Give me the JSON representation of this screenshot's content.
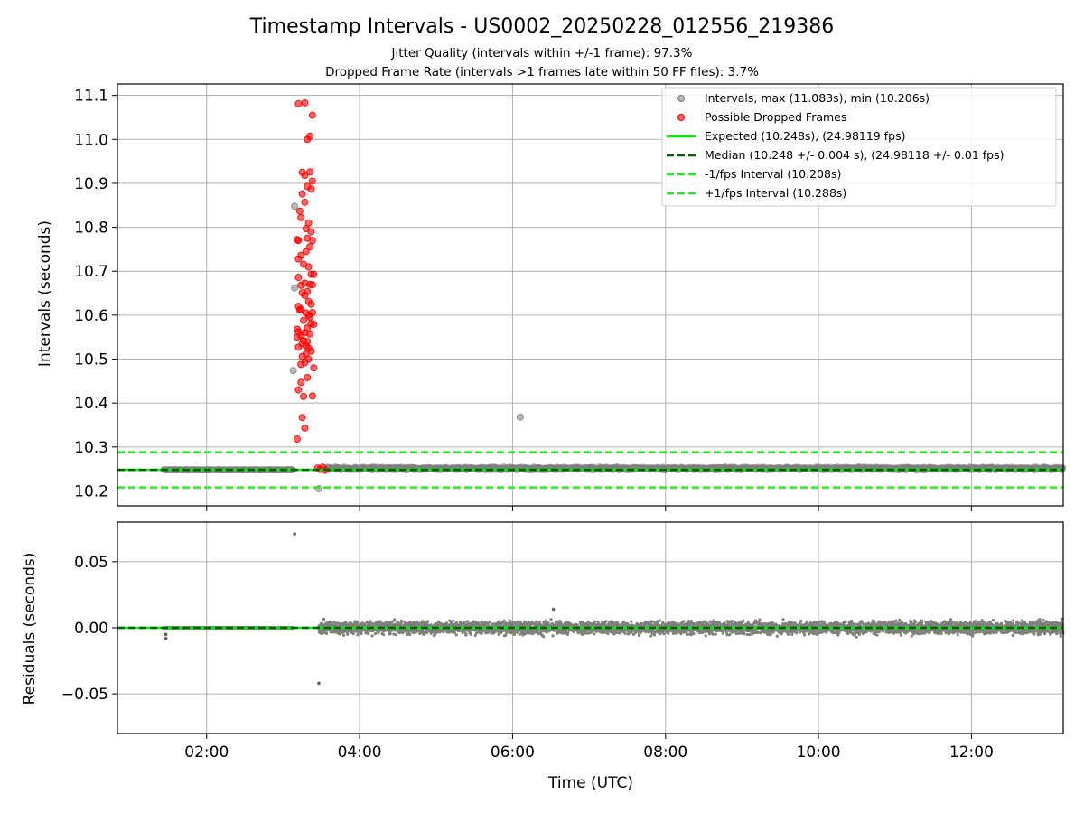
{
  "title": "Timestamp Intervals - US0002_20250228_012556_219386",
  "subtitles": [
    "Jitter Quality (intervals within +/-1 frame): 97.3%",
    "Dropped Frame Rate (intervals >1 frames late within 50 FF files): 3.7%"
  ],
  "colors": {
    "intervals": "#808080",
    "dropped": "#ff0000",
    "expected": "#00ee00",
    "median": "#006400",
    "bounds": "#22ee22",
    "grid": "#b0b0b0"
  },
  "chart_data": [
    {
      "type": "scatter",
      "name": "intervals",
      "ylabel": "Intervals (seconds)",
      "xlabel": "",
      "xlim": [
        "00:50",
        "13:12"
      ],
      "ylim": [
        10.166,
        11.126
      ],
      "yticks": [
        "10.2",
        "10.3",
        "10.4",
        "10.5",
        "10.6",
        "10.7",
        "10.8",
        "10.9",
        "11.0",
        "11.1"
      ],
      "xticks": [
        "02:00",
        "04:00",
        "06:00",
        "08:00",
        "10:00",
        "12:00"
      ],
      "grid": true,
      "legend_position": "top-right",
      "legend": [
        "Intervals, max (11.083s), min (10.206s)",
        "Possible Dropped Frames",
        "Expected (10.248s), (24.98119 fps)",
        "Median (10.248 +/- 0.004 s), (24.98118 +/- 0.01 fps)",
        "-1/fps Interval (10.208s)",
        "+1/fps Interval (10.288s)"
      ],
      "reference_lines": {
        "expected": 10.248,
        "median": 10.248,
        "minus_one_fps": 10.208,
        "plus_one_fps": 10.288
      },
      "normal_segments": [
        {
          "x_start": "01:26",
          "x_end": "03:08",
          "y": 10.248,
          "spread": 0.002
        },
        {
          "x_start": "03:34",
          "x_end": "13:12",
          "y": 10.251,
          "spread": 0.006
        }
      ],
      "gray_points": [
        {
          "x": "03:09",
          "y": 10.848
        },
        {
          "x": "03:09",
          "y": 10.662
        },
        {
          "x": "03:08",
          "y": 10.474
        },
        {
          "x": "03:28",
          "y": 10.205
        },
        {
          "x": "06:06",
          "y": 10.368
        }
      ],
      "dropped_points": [
        {
          "x": "03:12",
          "y": 11.081
        },
        {
          "x": "03:17",
          "y": 11.083
        },
        {
          "x": "03:23",
          "y": 11.055
        },
        {
          "x": "03:19",
          "y": 11.0
        },
        {
          "x": "03:21",
          "y": 11.007
        },
        {
          "x": "03:15",
          "y": 10.925
        },
        {
          "x": "03:17",
          "y": 10.918
        },
        {
          "x": "03:21",
          "y": 10.926
        },
        {
          "x": "03:23",
          "y": 10.905
        },
        {
          "x": "03:19",
          "y": 10.893
        },
        {
          "x": "03:22",
          "y": 10.887
        },
        {
          "x": "03:15",
          "y": 10.876
        },
        {
          "x": "03:17",
          "y": 10.857
        },
        {
          "x": "03:13",
          "y": 10.837
        },
        {
          "x": "03:14",
          "y": 10.822
        },
        {
          "x": "03:20",
          "y": 10.81
        },
        {
          "x": "03:18",
          "y": 10.797
        },
        {
          "x": "03:22",
          "y": 10.79
        },
        {
          "x": "03:19",
          "y": 10.775
        },
        {
          "x": "03:23",
          "y": 10.77
        },
        {
          "x": "03:11",
          "y": 10.772
        },
        {
          "x": "03:12",
          "y": 10.77
        },
        {
          "x": "03:21",
          "y": 10.756
        },
        {
          "x": "03:18",
          "y": 10.745
        },
        {
          "x": "03:14",
          "y": 10.736
        },
        {
          "x": "03:12",
          "y": 10.728
        },
        {
          "x": "03:16",
          "y": 10.716
        },
        {
          "x": "03:20",
          "y": 10.71
        },
        {
          "x": "03:22",
          "y": 10.693
        },
        {
          "x": "03:24",
          "y": 10.693
        },
        {
          "x": "03:12",
          "y": 10.686
        },
        {
          "x": "03:17",
          "y": 10.673
        },
        {
          "x": "03:14",
          "y": 10.668
        },
        {
          "x": "03:21",
          "y": 10.67
        },
        {
          "x": "03:23",
          "y": 10.669
        },
        {
          "x": "03:19",
          "y": 10.654
        },
        {
          "x": "03:15",
          "y": 10.651
        },
        {
          "x": "03:17",
          "y": 10.645
        },
        {
          "x": "03:20",
          "y": 10.631
        },
        {
          "x": "03:22",
          "y": 10.625
        },
        {
          "x": "03:12",
          "y": 10.62
        },
        {
          "x": "03:13",
          "y": 10.612
        },
        {
          "x": "03:14",
          "y": 10.613
        },
        {
          "x": "03:18",
          "y": 10.605
        },
        {
          "x": "03:20",
          "y": 10.6
        },
        {
          "x": "03:23",
          "y": 10.606
        },
        {
          "x": "03:21",
          "y": 10.595
        },
        {
          "x": "03:16",
          "y": 10.588
        },
        {
          "x": "03:22",
          "y": 10.58
        },
        {
          "x": "03:24",
          "y": 10.579
        },
        {
          "x": "03:19",
          "y": 10.571
        },
        {
          "x": "03:11",
          "y": 10.568
        },
        {
          "x": "03:12",
          "y": 10.562
        },
        {
          "x": "03:17",
          "y": 10.56
        },
        {
          "x": "03:14",
          "y": 10.553
        },
        {
          "x": "03:21",
          "y": 10.557
        },
        {
          "x": "03:11",
          "y": 10.55
        },
        {
          "x": "03:16",
          "y": 10.542
        },
        {
          "x": "03:19",
          "y": 10.54
        },
        {
          "x": "03:18",
          "y": 10.53
        },
        {
          "x": "03:15",
          "y": 10.535
        },
        {
          "x": "03:20",
          "y": 10.525
        },
        {
          "x": "03:12",
          "y": 10.527
        },
        {
          "x": "03:22",
          "y": 10.518
        },
        {
          "x": "03:18",
          "y": 10.512
        },
        {
          "x": "03:15",
          "y": 10.506
        },
        {
          "x": "03:20",
          "y": 10.5
        },
        {
          "x": "03:17",
          "y": 10.492
        },
        {
          "x": "03:14",
          "y": 10.488
        },
        {
          "x": "03:24",
          "y": 10.48
        },
        {
          "x": "03:19",
          "y": 10.458
        },
        {
          "x": "03:14",
          "y": 10.447
        },
        {
          "x": "03:12",
          "y": 10.43
        },
        {
          "x": "03:16",
          "y": 10.415
        },
        {
          "x": "03:23",
          "y": 10.416
        },
        {
          "x": "03:15",
          "y": 10.367
        },
        {
          "x": "03:17",
          "y": 10.343
        },
        {
          "x": "03:11",
          "y": 10.318
        },
        {
          "x": "03:27",
          "y": 10.252
        },
        {
          "x": "03:29",
          "y": 10.249
        },
        {
          "x": "03:31",
          "y": 10.254
        },
        {
          "x": "03:33",
          "y": 10.247
        }
      ]
    },
    {
      "type": "scatter",
      "name": "residuals",
      "ylabel": "Residuals (seconds)",
      "xlabel": "Time (UTC)",
      "xlim": [
        "00:50",
        "13:12"
      ],
      "ylim": [
        -0.08,
        0.08
      ],
      "yticks": [
        "−0.05",
        "0.00",
        "0.05"
      ],
      "xticks": [
        "02:00",
        "04:00",
        "06:00",
        "08:00",
        "10:00",
        "12:00"
      ],
      "grid": true,
      "reference_lines": {
        "expected": 0.0,
        "median": 0.0
      },
      "normal_segments": [
        {
          "x_start": "01:26",
          "x_end": "03:08",
          "y": 0.0,
          "spread": 0.0005
        },
        {
          "x_start": "03:28",
          "x_end": "13:12",
          "y": 0.0,
          "spread": 0.008
        }
      ],
      "outliers": [
        {
          "x": "03:09",
          "y": 0.071
        },
        {
          "x": "03:28",
          "y": -0.042
        },
        {
          "x": "01:28",
          "y": -0.005
        },
        {
          "x": "01:28",
          "y": -0.008
        },
        {
          "x": "06:32",
          "y": 0.014
        }
      ]
    }
  ]
}
